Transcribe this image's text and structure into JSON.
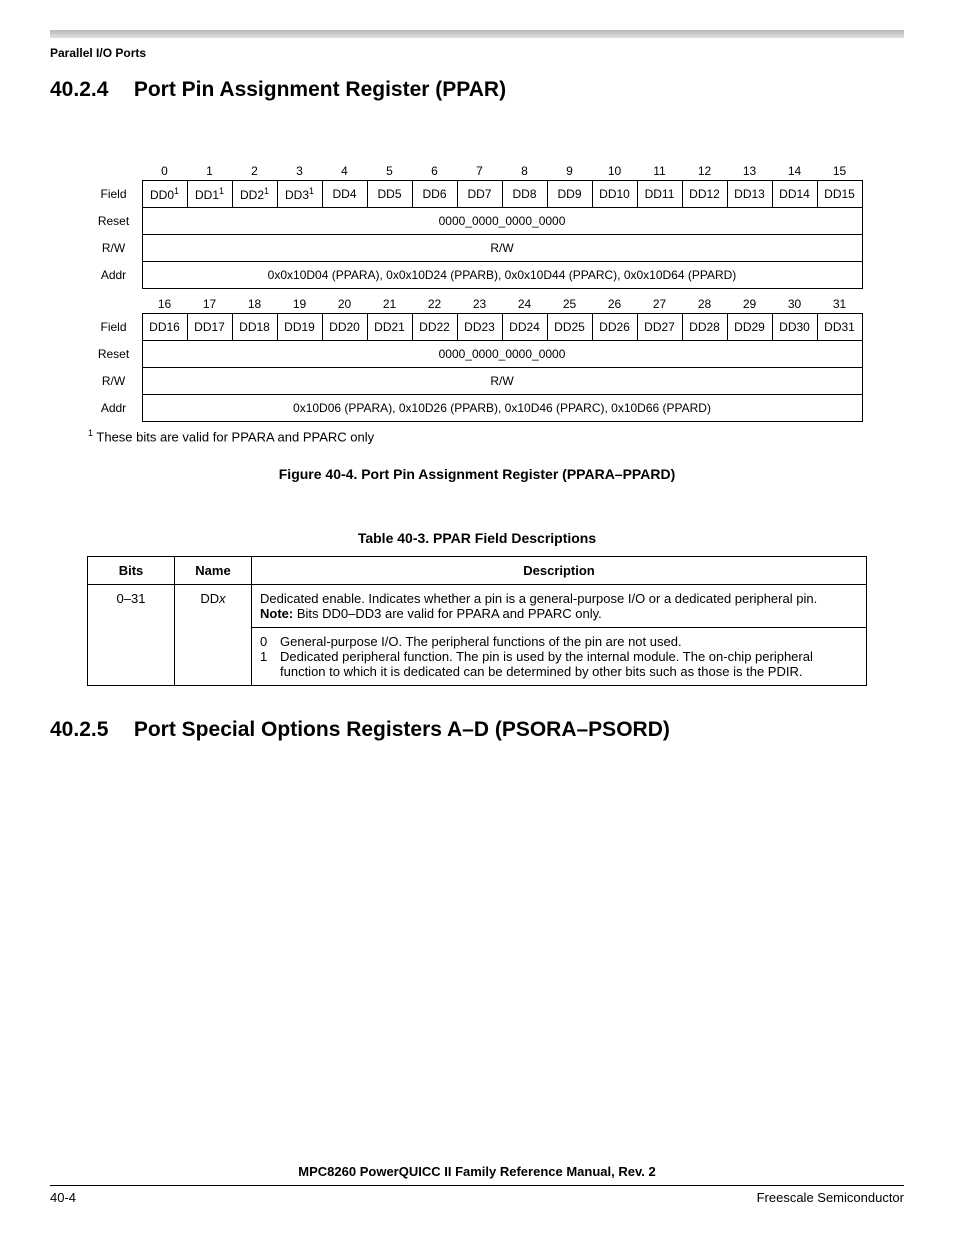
{
  "header": {
    "label": "Parallel I/O Ports"
  },
  "section1": {
    "number": "40.2.4",
    "title": "Port Pin Assignment Register (PPAR)"
  },
  "register": {
    "rowLabels": {
      "field": "Field",
      "reset": "Reset",
      "rw": "R/W",
      "addr": "Addr"
    },
    "top": {
      "bitNums": [
        "0",
        "1",
        "2",
        "3",
        "4",
        "5",
        "6",
        "7",
        "8",
        "9",
        "10",
        "11",
        "12",
        "13",
        "14",
        "15"
      ],
      "fields": [
        "DD0",
        "DD1",
        "DD2",
        "DD3",
        "DD4",
        "DD5",
        "DD6",
        "DD7",
        "DD8",
        "DD9",
        "DD10",
        "DD11",
        "DD12",
        "DD13",
        "DD14",
        "DD15"
      ],
      "supFlags": [
        true,
        true,
        true,
        true,
        false,
        false,
        false,
        false,
        false,
        false,
        false,
        false,
        false,
        false,
        false,
        false
      ],
      "reset": "0000_0000_0000_0000",
      "rw": "R/W",
      "addr": "0x0x10D04 (PPARA), 0x0x10D24 (PPARB), 0x0x10D44 (PPARC), 0x0x10D64 (PPARD)"
    },
    "bottom": {
      "bitNums": [
        "16",
        "17",
        "18",
        "19",
        "20",
        "21",
        "22",
        "23",
        "24",
        "25",
        "26",
        "27",
        "28",
        "29",
        "30",
        "31"
      ],
      "fields": [
        "DD16",
        "DD17",
        "DD18",
        "DD19",
        "DD20",
        "DD21",
        "DD22",
        "DD23",
        "DD24",
        "DD25",
        "DD26",
        "DD27",
        "DD28",
        "DD29",
        "DD30",
        "DD31"
      ],
      "supFlags": [
        false,
        false,
        false,
        false,
        false,
        false,
        false,
        false,
        false,
        false,
        false,
        false,
        false,
        false,
        false,
        false
      ],
      "reset": "0000_0000_0000_0000",
      "rw": "R/W",
      "addr": "0x10D06 (PPARA), 0x10D26 (PPARB), 0x10D46 (PPARC), 0x10D66 (PPARD)"
    },
    "footnote": "These bits are valid for PPARA and PPARC only",
    "figureCaption": "Figure 40-4. Port Pin Assignment Register (PPARA–PPARD)"
  },
  "descTable": {
    "caption": "Table 40-3. PPAR Field Descriptions",
    "headers": {
      "bits": "Bits",
      "name": "Name",
      "description": "Description"
    },
    "row": {
      "bits": "0–31",
      "name": "DDx",
      "descTop": "Dedicated enable. Indicates whether a pin is a general-purpose I/O or a dedicated peripheral pin.",
      "note": "Note: ",
      "noteText": "Bits DD0–DD3 are valid for PPARA and PPARC only.",
      "opt0": "General-purpose I/O. The peripheral functions of the pin are not used.",
      "opt1": "Dedicated peripheral function. The pin is used by the internal module. The on-chip peripheral function to which it is dedicated can be determined by other bits such as those is the PDIR."
    }
  },
  "section2": {
    "number": "40.2.5",
    "title": "Port Special Options Registers A–D (PSORA–PSORD)"
  },
  "footer": {
    "manual": "MPC8260 PowerQUICC II Family Reference Manual, Rev. 2",
    "pageNum": "40-4",
    "company": "Freescale Semiconductor"
  }
}
